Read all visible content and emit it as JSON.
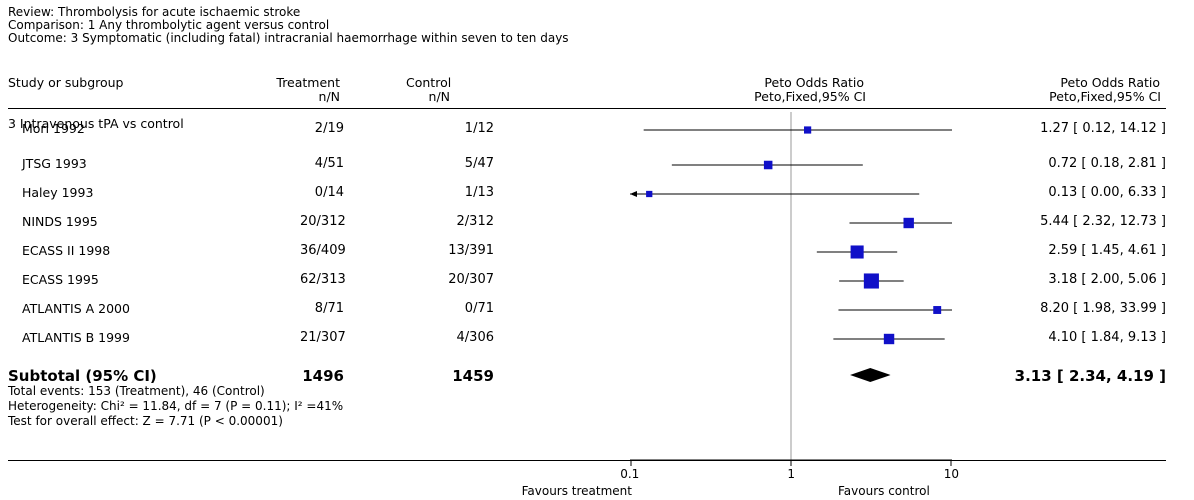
{
  "header": {
    "review": "Review: Thrombolysis for acute ischaemic stroke",
    "comparison": "Comparison: 1 Any thrombolytic agent versus control",
    "outcome": "Outcome: 3 Symptomatic (including fatal) intracranial haemorrhage within seven to ten days"
  },
  "columns": {
    "study": "Study or subgroup",
    "treatment": "Treatment",
    "treatment_sub": "n/N",
    "control": "Control",
    "control_sub": "n/N",
    "plot_title": "Peto Odds Ratio",
    "plot_sub": "Peto,Fixed,95% CI",
    "ratio_title": "Peto Odds Ratio",
    "ratio_sub": "Peto,Fixed,95% CI"
  },
  "subgroup_title": "3 Intravenous tPA vs control",
  "subtotal": {
    "label": "Subtotal (95% CI)",
    "treatment_total": "1496",
    "control_total": "1459",
    "ci_text": "3.13 [ 2.34, 4.19 ]",
    "total_events": "Total events: 153 (Treatment), 46 (Control)",
    "heterogeneity": "Heterogeneity: Chi² = 11.84, df = 7 (P = 0.11); I² =41%",
    "overall_effect": "Test for overall effect: Z = 7.71 (P < 0.00001)"
  },
  "axis": {
    "ticks": [
      "0.1",
      "1",
      "10"
    ],
    "favours_left": "Favours treatment",
    "favours_right": "Favours control"
  },
  "chart_data": {
    "type": "scatter",
    "scale": "log",
    "reference_line": 1,
    "studies": [
      {
        "name": "Mori 1992",
        "treatment": "2/19",
        "control": "1/12",
        "or": 1.27,
        "lo": 0.12,
        "hi": 14.12,
        "ci_text": "1.27 [ 0.12, 14.12 ]",
        "weight": 1
      },
      {
        "name": "JTSG 1993",
        "treatment": "4/51",
        "control": "5/47",
        "or": 0.72,
        "lo": 0.18,
        "hi": 2.81,
        "ci_text": "0.72 [ 0.18, 2.81 ]",
        "weight": 2
      },
      {
        "name": "Haley 1993",
        "treatment": "0/14",
        "control": "1/13",
        "or": 0.13,
        "lo": 0.0,
        "hi": 6.33,
        "ci_text": "0.13 [ 0.00, 6.33 ]",
        "weight": 0.5
      },
      {
        "name": "NINDS 1995",
        "treatment": "20/312",
        "control": "2/312",
        "or": 5.44,
        "lo": 2.32,
        "hi": 12.73,
        "ci_text": "5.44 [ 2.32, 12.73 ]",
        "weight": 4
      },
      {
        "name": "ECASS II 1998",
        "treatment": "36/409",
        "control": "13/391",
        "or": 2.59,
        "lo": 1.45,
        "hi": 4.61,
        "ci_text": "2.59 [ 1.45, 4.61 ]",
        "weight": 8
      },
      {
        "name": "ECASS 1995",
        "treatment": "62/313",
        "control": "20/307",
        "or": 3.18,
        "lo": 2.0,
        "hi": 5.06,
        "ci_text": "3.18 [ 2.00, 5.06 ]",
        "weight": 12
      },
      {
        "name": "ATLANTIS A 2000",
        "treatment": "8/71",
        "control": "0/71",
        "or": 8.2,
        "lo": 1.98,
        "hi": 33.99,
        "ci_text": "8.20 [ 1.98, 33.99 ]",
        "weight": 1.5
      },
      {
        "name": "ATLANTIS B 1999",
        "treatment": "21/307",
        "control": "4/306",
        "or": 4.1,
        "lo": 1.84,
        "hi": 9.13,
        "ci_text": "4.10 [ 1.84, 9.13 ]",
        "weight": 4
      }
    ],
    "pooled": {
      "or": 3.13,
      "lo": 2.34,
      "hi": 4.19
    },
    "x_ticks": [
      0.1,
      1,
      10
    ]
  }
}
